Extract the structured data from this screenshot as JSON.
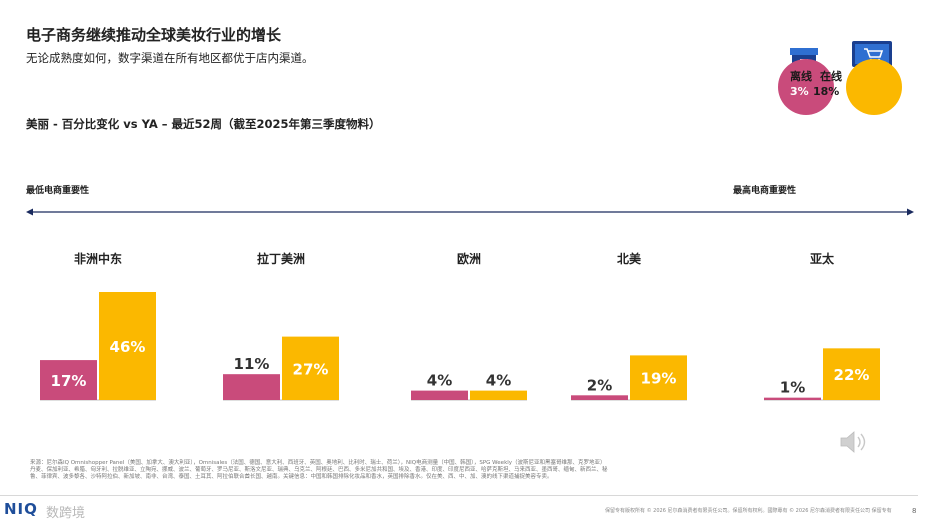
{
  "header": {
    "title": "电子商务继续推动全球美妆行业的增长",
    "subtitle": "无论成熟度如何，数字渠道在所有地区都优于店内渠道。"
  },
  "legend": {
    "offline_label": "离线",
    "online_label": "在线",
    "offline_value": "3%",
    "online_value": "18%",
    "offline_color": "#c94b7b",
    "online_color": "#fbb800",
    "offline_icon": "store-icon",
    "online_icon": "computer-cart-icon"
  },
  "chart_data": {
    "type": "bar",
    "title": "美丽 - 百分比变化 vs YA – 最近52周（截至2025年第三季度物料）",
    "axis_left_label": "最低电商重要性",
    "axis_right_label": "最高电商重要性",
    "categories": [
      "非洲中东",
      "拉丁美洲",
      "欧洲",
      "北美",
      "亚太"
    ],
    "series": [
      {
        "name": "离线",
        "values": [
          17,
          11,
          4,
          2,
          1
        ],
        "labels": [
          "17%",
          "11%",
          "4%",
          "2%",
          "1%"
        ],
        "color": "#c94b7b"
      },
      {
        "name": "在线",
        "values": [
          46,
          27,
          4,
          19,
          22
        ],
        "labels": [
          "46%",
          "27%",
          "4%",
          "19%",
          "22%"
        ],
        "color": "#fbb800"
      }
    ]
  },
  "footer": {
    "source": "来源：尼尔森IQ Omnishopper Panel（美国、加拿大、澳大利亚），Omnisales（法国、德国、意大利、西班牙、英国、奥地利、比利时、瑞士、荷兰），NIQ电商测量（中国、韩国），SPG Weekly（波斯尼亚和黑塞哥维那、克罗地亚）丹麦、保加利亚、希腊、匈牙利、拉脱维亚、立陶宛、挪威、波兰、葡萄牙、罗马尼亚、斯洛文尼亚、瑞典、乌克兰、阿根廷、巴西、多米尼加共和国、埃及、香港、印度、印度尼西亚、哈萨克斯坦、马来西亚、墨西哥、缅甸、新西兰、秘鲁、菲律宾、波多黎各、沙特阿拉伯、新加坡、南非、台湾、泰国、土耳其、阿拉伯联合酋长国、越南。关键信息：中国和韩国排除化妆品和香水，英国排除香水。仅在美、西、中、加、澳的线下渠道捕捉美容专卖。",
    "copyright": "保留专有版权所有 © 2026 尼尔森消费者有限责任公司。保留所有权利。國際專有 © 2026 尼尔森消费者有限责任公司 保留专有",
    "page": "8",
    "logo": "NIQ",
    "watermark": "数跨境"
  }
}
